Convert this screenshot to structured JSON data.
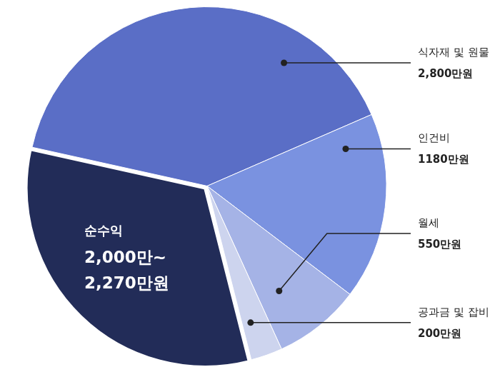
{
  "chart_data": {
    "type": "pie",
    "categories": [
      "식자재 및 원물",
      "인건비",
      "월세",
      "공과금 및 잡비",
      "순수익"
    ],
    "values": [
      2800,
      1180,
      550,
      200,
      2270
    ],
    "value_labels": [
      "2,800만원",
      "1180만원",
      "550만원",
      "200만원",
      "2,000만~\n2,270만원"
    ],
    "colors": [
      "#5a6ec6",
      "#7a92e0",
      "#a5b3e6",
      "#cdd4ee",
      "#222c58"
    ],
    "data_labels": true
  }
}
